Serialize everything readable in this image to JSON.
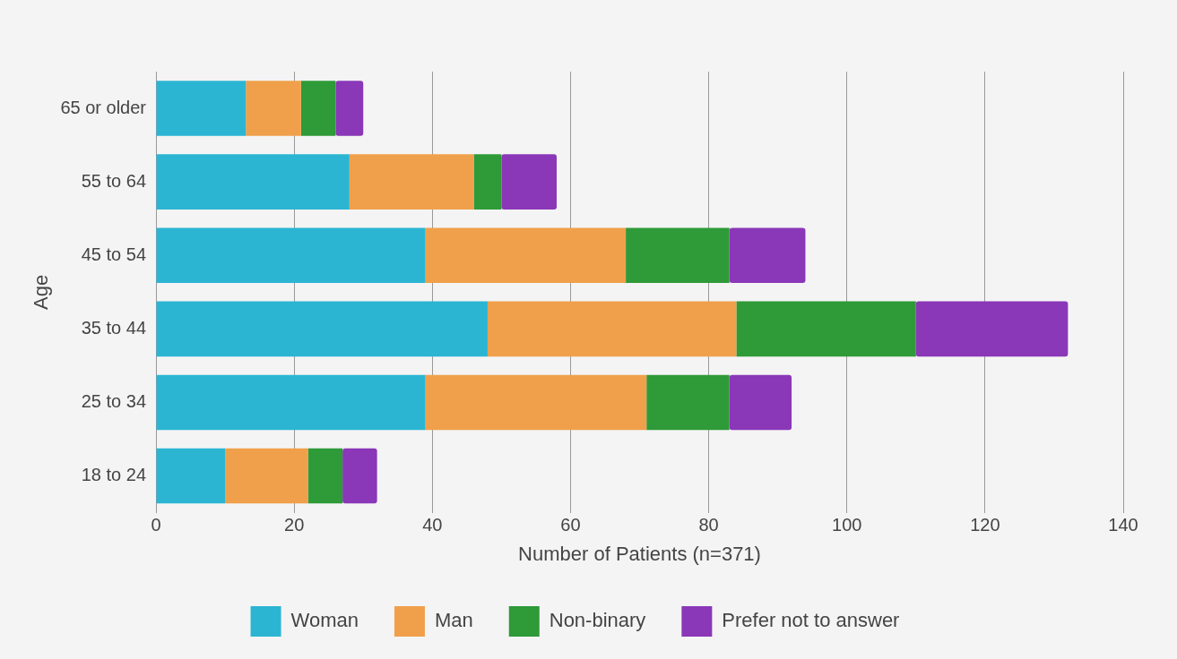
{
  "chart_data": {
    "type": "bar",
    "orientation": "horizontal",
    "stacked": true,
    "xlabel": "Number of Patients (n=371)",
    "ylabel": "Age",
    "categories": [
      "65 or older",
      "55 to 64",
      "45 to 54",
      "35 to 44",
      "25 to 34",
      "18 to 24"
    ],
    "series": [
      {
        "name": "Woman",
        "color": "#2bb5d3",
        "values": [
          13,
          28,
          39,
          48,
          39,
          10
        ]
      },
      {
        "name": "Man",
        "color": "#f0a04b",
        "values": [
          8,
          18,
          29,
          36,
          32,
          12
        ]
      },
      {
        "name": "Non-binary",
        "color": "#2e9a38",
        "values": [
          5,
          4,
          15,
          26,
          12,
          5
        ]
      },
      {
        "name": "Prefer not to answer",
        "color": "#8a37b8",
        "values": [
          4,
          8,
          11,
          22,
          9,
          5
        ]
      }
    ],
    "xlim": [
      0,
      140
    ],
    "xticks": [
      0,
      20,
      40,
      60,
      80,
      100,
      120,
      140
    ],
    "grid": "x",
    "legend": "bottom"
  }
}
